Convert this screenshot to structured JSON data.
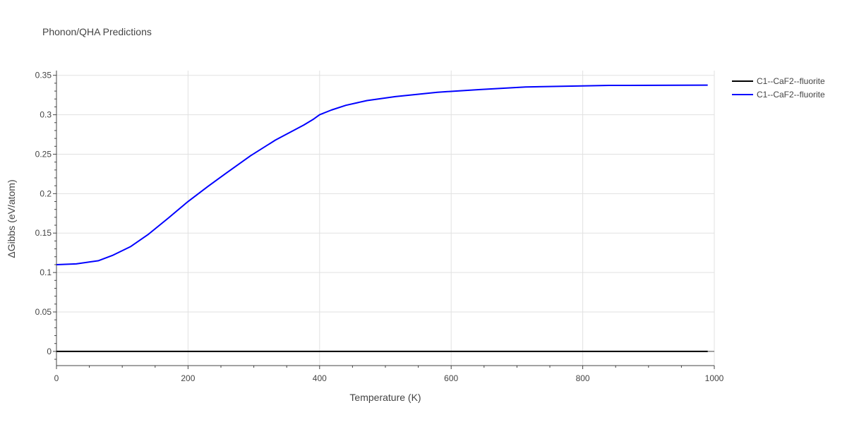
{
  "chart_data": {
    "type": "line",
    "title": "Phonon/QHA Predictions",
    "xlabel": "Temperature (K)",
    "ylabel": "ΔGibbs (eV/atom)",
    "xlim": [
      0,
      1000
    ],
    "ylim": [
      -0.018,
      0.356
    ],
    "xticks": [
      0,
      200,
      400,
      600,
      800,
      1000
    ],
    "yticks": [
      0,
      0.05,
      0.1,
      0.15,
      0.2,
      0.25,
      0.3,
      0.35
    ],
    "ytick_labels": [
      "0",
      "0.05",
      "0.1",
      "0.15",
      "0.2",
      "0.25",
      "0.3",
      "0.35"
    ],
    "grid": true,
    "legend_position": "top-right-outside",
    "series": [
      {
        "name": "C1--CaF2--fluorite",
        "color": "#000000",
        "x": [
          0,
          990
        ],
        "y": [
          0,
          0
        ]
      },
      {
        "name": "C1--CaF2--fluorite",
        "color": "#0000ff",
        "x": [
          0,
          30,
          64,
          86,
          113,
          139,
          170,
          200,
          230,
          258,
          295,
          333,
          376,
          390,
          400,
          418,
          440,
          472,
          515,
          579,
          644,
          713,
          805,
          840,
          990
        ],
        "y": [
          0.11,
          0.111,
          0.115,
          0.122,
          0.133,
          0.148,
          0.169,
          0.19,
          0.209,
          0.226,
          0.248,
          0.268,
          0.287,
          0.294,
          0.3,
          0.306,
          0.312,
          0.318,
          0.323,
          0.3285,
          0.332,
          0.3352,
          0.3366,
          0.3372,
          0.3375
        ]
      }
    ]
  }
}
